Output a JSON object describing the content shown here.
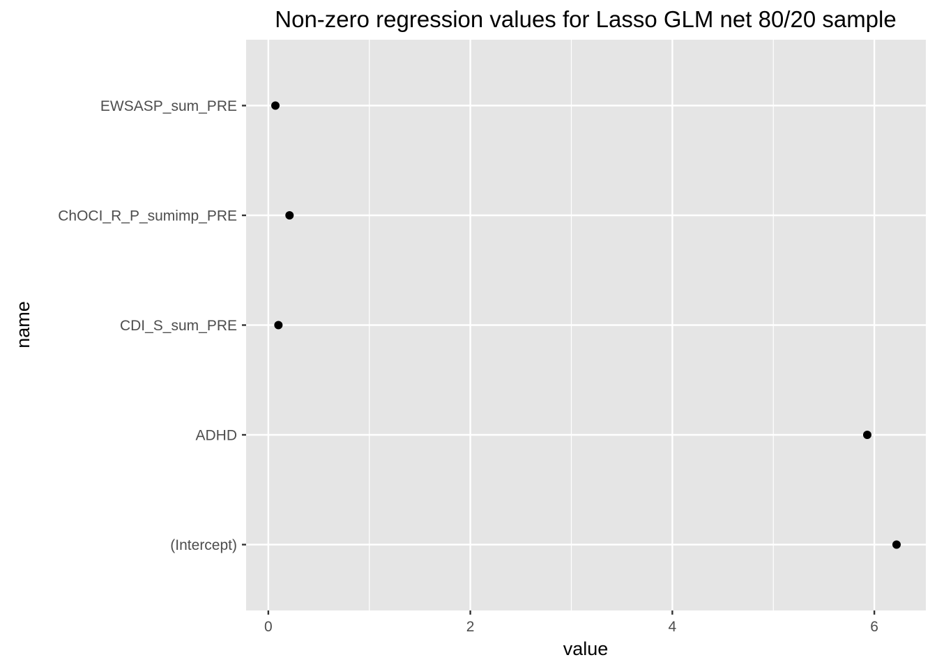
{
  "chart_data": {
    "type": "scatter",
    "title": "Non-zero regression values for Lasso GLM net 80/20 sample",
    "xlabel": "value",
    "ylabel": "name",
    "categories": [
      "(Intercept)",
      "ADHD",
      "CDI_S_sum_PRE",
      "ChOCI_R_P_sumimp_PRE",
      "EWSASP_sum_PRE"
    ],
    "values": [
      6.22,
      5.93,
      0.1,
      0.21,
      0.07
    ],
    "xlim": [
      -0.22,
      6.51
    ],
    "x_ticks": [
      0,
      2,
      4,
      6
    ],
    "x_tick_labels": [
      "0",
      "2",
      "4",
      "6"
    ],
    "grid": true,
    "legend": "none",
    "colors": {
      "panel": "#e5e5e5",
      "grid": "#ffffff",
      "point": "#000000",
      "tick_text": "#4d4d4d",
      "tick_mark": "#333333"
    }
  }
}
